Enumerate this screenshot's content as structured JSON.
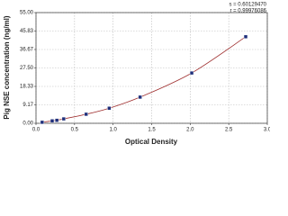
{
  "chart_data": {
    "type": "scatter",
    "x_label": "Optical Density",
    "y_label": "Pig NSE concentration (ng/ml)",
    "annotations": [
      "s = 0.60129470",
      "r = 0.99976086"
    ],
    "x": [
      0.08,
      0.21,
      0.27,
      0.36,
      0.65,
      0.95,
      1.35,
      2.02,
      2.72
    ],
    "series": [
      {
        "values": [
          0.5,
          1.2,
          1.5,
          2.2,
          4.5,
          7.5,
          13,
          25,
          43
        ],
        "color": "#1f2f7a",
        "line_color": "#a03030"
      }
    ],
    "xlim": [
      0,
      3
    ],
    "xticks": [
      {
        "value": 0,
        "label": "0.0"
      },
      {
        "value": 0.5,
        "label": "0.5"
      },
      {
        "value": 1,
        "label": "1.0"
      },
      {
        "value": 1.5,
        "label": "1.5"
      },
      {
        "value": 2,
        "label": "2.0"
      },
      {
        "value": 2.5,
        "label": "2.5"
      },
      {
        "value": 3,
        "label": "3.0"
      }
    ],
    "ylim": [
      0,
      55
    ],
    "yticks": [
      {
        "value": 0,
        "label": "0.00"
      },
      {
        "value": 9.17,
        "label": "9.17"
      },
      {
        "value": 18.33,
        "label": "18.33"
      },
      {
        "value": 27.5,
        "label": "27.50"
      },
      {
        "value": 36.67,
        "label": "36.67"
      },
      {
        "value": 45.83,
        "label": "45.83"
      },
      {
        "value": 55,
        "label": "55.00"
      }
    ],
    "grid": true
  }
}
